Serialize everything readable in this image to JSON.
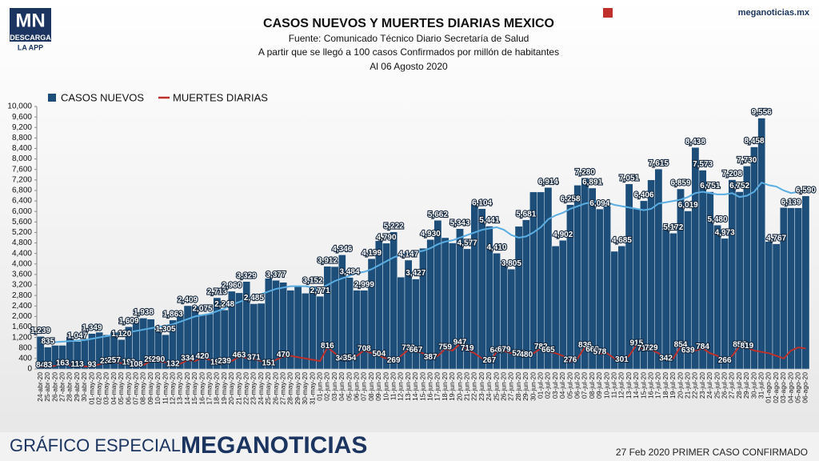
{
  "brand": {
    "logo": "MN",
    "download": "DESCARGA",
    "app": "LA APP",
    "site": "meganoticias.mx"
  },
  "footer": {
    "left": "GRÁFICO ESPECIAL",
    "brand": "MEGANOTICIAS",
    "right": "27 Feb 2020 PRIMER CASO CONFIRMADO"
  },
  "chart_data": {
    "type": "bar_line",
    "title": "CASOS NUEVOS Y MUERTES DIARIAS MEXICO",
    "subtitle": [
      "Fuente: Comunicado Técnico Diario Secretaría de Salud",
      "A partir que se llegó a 100 casos Confirmados por millón de habitantes",
      "Al 06 Agosto 2020"
    ],
    "categories": [
      "24-abr-20",
      "25-abr-20",
      "26-abr-20",
      "27-abr-20",
      "28-abr-20",
      "29-abr-20",
      "30-abr-20",
      "01-may-20",
      "02-may-20",
      "03-may-20",
      "04-may-20",
      "05-may-20",
      "06-may-20",
      "07-may-20",
      "08-may-20",
      "09-may-20",
      "10-may-20",
      "11-may-20",
      "12-may-20",
      "13-may-20",
      "14-may-20",
      "15-may-20",
      "16-may-20",
      "17-may-20",
      "18-may-20",
      "19-may-20",
      "20-may-20",
      "21-may-20",
      "22-may-20",
      "23-may-20",
      "24-may-20",
      "25-may-20",
      "26-may-20",
      "27-may-20",
      "28-may-20",
      "29-may-20",
      "30-may-20",
      "31-may-20",
      "01-jun-20",
      "02-jun-20",
      "03-jun-20",
      "04-jun-20",
      "05-jun-20",
      "06-jun-20",
      "07-jun-20",
      "08-jun-20",
      "09-jun-20",
      "10-jun-20",
      "11-jun-20",
      "12-jun-20",
      "13-jun-20",
      "14-jun-20",
      "15-jun-20",
      "16-jun-20",
      "17-jun-20",
      "18-jun-20",
      "19-jun-20",
      "20-jun-20",
      "21-jun-20",
      "22-jun-20",
      "23-jun-20",
      "24-jun-20",
      "25-jun-20",
      "26-jun-20",
      "27-jun-20",
      "28-jun-20",
      "29-jun-20",
      "30-jun-20",
      "01-jul-20",
      "02-jul-20",
      "03-jul-20",
      "04-jul-20",
      "05-jul-20",
      "06-jul-20",
      "07-jul-20",
      "08-jul-20",
      "09-jul-20",
      "10-jul-20",
      "11-jul-20",
      "12-jul-20",
      "13-jul-20",
      "14-jul-20",
      "15-jul-20",
      "16-jul-20",
      "17-jul-20",
      "18-jul-20",
      "19-jul-20",
      "20-jul-20",
      "21-jul-20",
      "22-jul-20",
      "23-jul-20",
      "24-jul-20",
      "25-jul-20",
      "26-jul-20",
      "27-jul-20",
      "28-jul-20",
      "29-jul-20",
      "30-jul-20",
      "31-jul-20",
      "01-ago-20",
      "02-ago-20",
      "03-ago-20",
      "04-ago-20",
      "05-ago-20",
      "06-ago-20"
    ],
    "series": [
      {
        "name": "CASOS NUEVOS",
        "kind": "bar",
        "color": "#1c4e79",
        "values": [
          1239,
          835,
          900,
          900,
          1223,
          1047,
          1100,
          1349,
          1400,
          1300,
          1400,
          1120,
          1609,
          1900,
          1938,
          1900,
          1500,
          1305,
          1863,
          2100,
          2409,
          2400,
          2075,
          2100,
          2713,
          2248,
          2960,
          2900,
          3329,
          2485,
          2500,
          3455,
          3377,
          3300,
          3000,
          3152,
          2885,
          3152,
          2771,
          3912,
          3900,
          4346,
          3484,
          3000,
          2999,
          4199,
          4883,
          4790,
          5222,
          3500,
          4147,
          3427,
          4600,
          4930,
          5662,
          5000,
          4800,
          5343,
          4577,
          6288,
          6104,
          5441,
          4410,
          4000,
          3805,
          5432,
          5681,
          6741,
          6741,
          6914,
          4683,
          4902,
          6258,
          7000,
          7280,
          6891,
          6094,
          6200,
          4482,
          4685,
          7051,
          6104,
          6406,
          7200,
          7615,
          5311,
          5172,
          6859,
          6019,
          8438,
          7573,
          6751,
          5480,
          4973,
          7208,
          6752,
          7730,
          8458,
          9556,
          4853,
          4767,
          6148,
          6139,
          6139,
          6590
        ],
        "value_labels": [
          "1,239",
          "835",
          null,
          null,
          null,
          "1,047",
          null,
          "1,349",
          null,
          null,
          null,
          "1,120",
          "1,609",
          null,
          "1,938",
          null,
          null,
          "1,305",
          "1,863",
          null,
          "2,409",
          null,
          "2,075",
          null,
          "2,713",
          "2,248",
          "2,960",
          null,
          "3,329",
          "2,485",
          null,
          null,
          "3,377",
          null,
          null,
          null,
          null,
          "3,152",
          "2,771",
          "3,912",
          null,
          "4,346",
          "3,484",
          null,
          "2,999",
          "4,199",
          null,
          "4,790",
          "5,222",
          null,
          "4,147",
          "3,427",
          null,
          "4,930",
          "5,662",
          null,
          null,
          "5,343",
          "4,577",
          null,
          "6,104",
          "5,441",
          "4,410",
          null,
          "3,805",
          null,
          "5,681",
          null,
          null,
          "6,914",
          null,
          "4,902",
          "6,258",
          null,
          "7,280",
          "6,891",
          "6,094",
          null,
          null,
          "4,685",
          "7,051",
          null,
          "6,406",
          null,
          "7,615",
          null,
          "5,172",
          "6,859",
          "6,019",
          "8,438",
          "7,573",
          "6,751",
          "5,480",
          "4,973",
          "7,208",
          "6,752",
          "7,730",
          "8,458",
          "9,556",
          null,
          "4,767",
          null,
          "6,139",
          null,
          "6,590"
        ]
      },
      {
        "name": "MUERTES DIARIAS",
        "kind": "line",
        "color": "#c0302a",
        "values": [
          84,
          83,
          120,
          163,
          140,
          113,
          100,
          93,
          180,
          236,
          257,
          220,
          193,
          108,
          150,
          294,
          290,
          250,
          132,
          200,
          334,
          300,
          420,
          350,
          190,
          239,
          300,
          463,
          420,
          371,
          300,
          151,
          350,
          470,
          500,
          450,
          400,
          350,
          300,
          816,
          600,
          341,
          354,
          500,
          708,
          600,
          504,
          400,
          269,
          500,
          730,
          667,
          600,
          387,
          500,
          759,
          700,
          947,
          719,
          600,
          400,
          267,
          648,
          679,
          600,
          523,
          480,
          600,
          782,
          665,
          600,
          500,
          276,
          400,
          836,
          668,
          578,
          600,
          400,
          301,
          500,
          915,
          718,
          729,
          600,
          342,
          400,
          854,
          639,
          700,
          784,
          600,
          500,
          266,
          500,
          857,
          819,
          700,
          650,
          600,
          500,
          400,
          700,
          819,
          780
        ],
        "value_labels": [
          "84",
          "83",
          null,
          "163",
          null,
          "113",
          null,
          "93",
          null,
          "236",
          "257",
          null,
          "193",
          "108",
          null,
          "294",
          "290",
          null,
          "132",
          null,
          "334",
          null,
          "420",
          null,
          "190",
          "239",
          null,
          "463",
          null,
          "371",
          null,
          "151",
          null,
          "470",
          null,
          null,
          null,
          null,
          null,
          "816",
          null,
          "341",
          "354",
          null,
          "708",
          null,
          "504",
          null,
          "269",
          null,
          "730",
          "667",
          null,
          "387",
          null,
          "759",
          null,
          "947",
          "719",
          null,
          null,
          "267",
          "648",
          "679",
          null,
          "523",
          "480",
          null,
          "782",
          "665",
          null,
          null,
          "276",
          null,
          "836",
          "668",
          "578",
          null,
          null,
          "301",
          null,
          "915",
          "718",
          "729",
          null,
          "342",
          null,
          "854",
          "639",
          null,
          "784",
          null,
          null,
          "266",
          null,
          "857",
          "819",
          null,
          null,
          null,
          null,
          null,
          null,
          null,
          null
        ]
      },
      {
        "kind": "line",
        "color": "#5aaee3",
        "values": [
          1000,
          1000,
          1020,
          1040,
          1060,
          1080,
          1100,
          1150,
          1200,
          1250,
          1300,
          1350,
          1400,
          1450,
          1500,
          1550,
          1600,
          1650,
          1700,
          1800,
          1900,
          2000,
          2050,
          2100,
          2200,
          2300,
          2450,
          2550,
          2650,
          2750,
          2850,
          2950,
          3050,
          3100,
          3150,
          3150,
          3150,
          3100,
          3050,
          3200,
          3350,
          3450,
          3550,
          3650,
          3700,
          3800,
          3950,
          4100,
          4250,
          4350,
          4400,
          4450,
          4500,
          4600,
          4750,
          4850,
          4900,
          5000,
          5100,
          5200,
          5300,
          5350,
          5400,
          5300,
          5100,
          5000,
          5050,
          5200,
          5400,
          5700,
          5850,
          5950,
          6100,
          6200,
          6300,
          6350,
          6400,
          6350,
          6250,
          6200,
          6150,
          6100,
          6050,
          6100,
          6300,
          6350,
          6400,
          6450,
          6550,
          6700,
          6750,
          6700,
          6650,
          6650,
          6700,
          6550,
          6600,
          6750,
          7100,
          7000,
          6950,
          6800,
          6700,
          6750,
          6750
        ]
      }
    ],
    "ylim": [
      0,
      10000
    ],
    "yticks": [
      0,
      400,
      800,
      {
        "value": 1200,
        "label": "1,200"
      },
      {
        "value": 1600,
        "label": "1,600"
      },
      {
        "value": 2000,
        "label": "2,000"
      },
      {
        "value": 2400,
        "label": "2,400"
      },
      {
        "value": 2800,
        "label": "2,800"
      },
      {
        "value": 3200,
        "label": "3,200"
      },
      {
        "value": 3600,
        "label": "3,600"
      },
      {
        "value": 4000,
        "label": "4,000"
      },
      {
        "value": 4400,
        "label": "4,400"
      },
      {
        "value": 4800,
        "label": "4,800"
      },
      {
        "value": 5200,
        "label": "5,200"
      },
      {
        "value": 5600,
        "label": "5,600"
      },
      {
        "value": 6000,
        "label": "6,000"
      },
      {
        "value": 6400,
        "label": "6,400"
      },
      {
        "value": 6800,
        "label": "6,800"
      },
      {
        "value": 7200,
        "label": "7,200"
      },
      {
        "value": 7600,
        "label": "7,600"
      },
      {
        "value": 8000,
        "label": "8,000"
      },
      {
        "value": 8400,
        "label": "8,400"
      },
      {
        "value": 8800,
        "label": "8,800"
      },
      {
        "value": 9200,
        "label": "9,200"
      },
      {
        "value": 9600,
        "label": "9,600"
      },
      {
        "value": 10000,
        "label": "10,000"
      }
    ],
    "grid": false
  }
}
